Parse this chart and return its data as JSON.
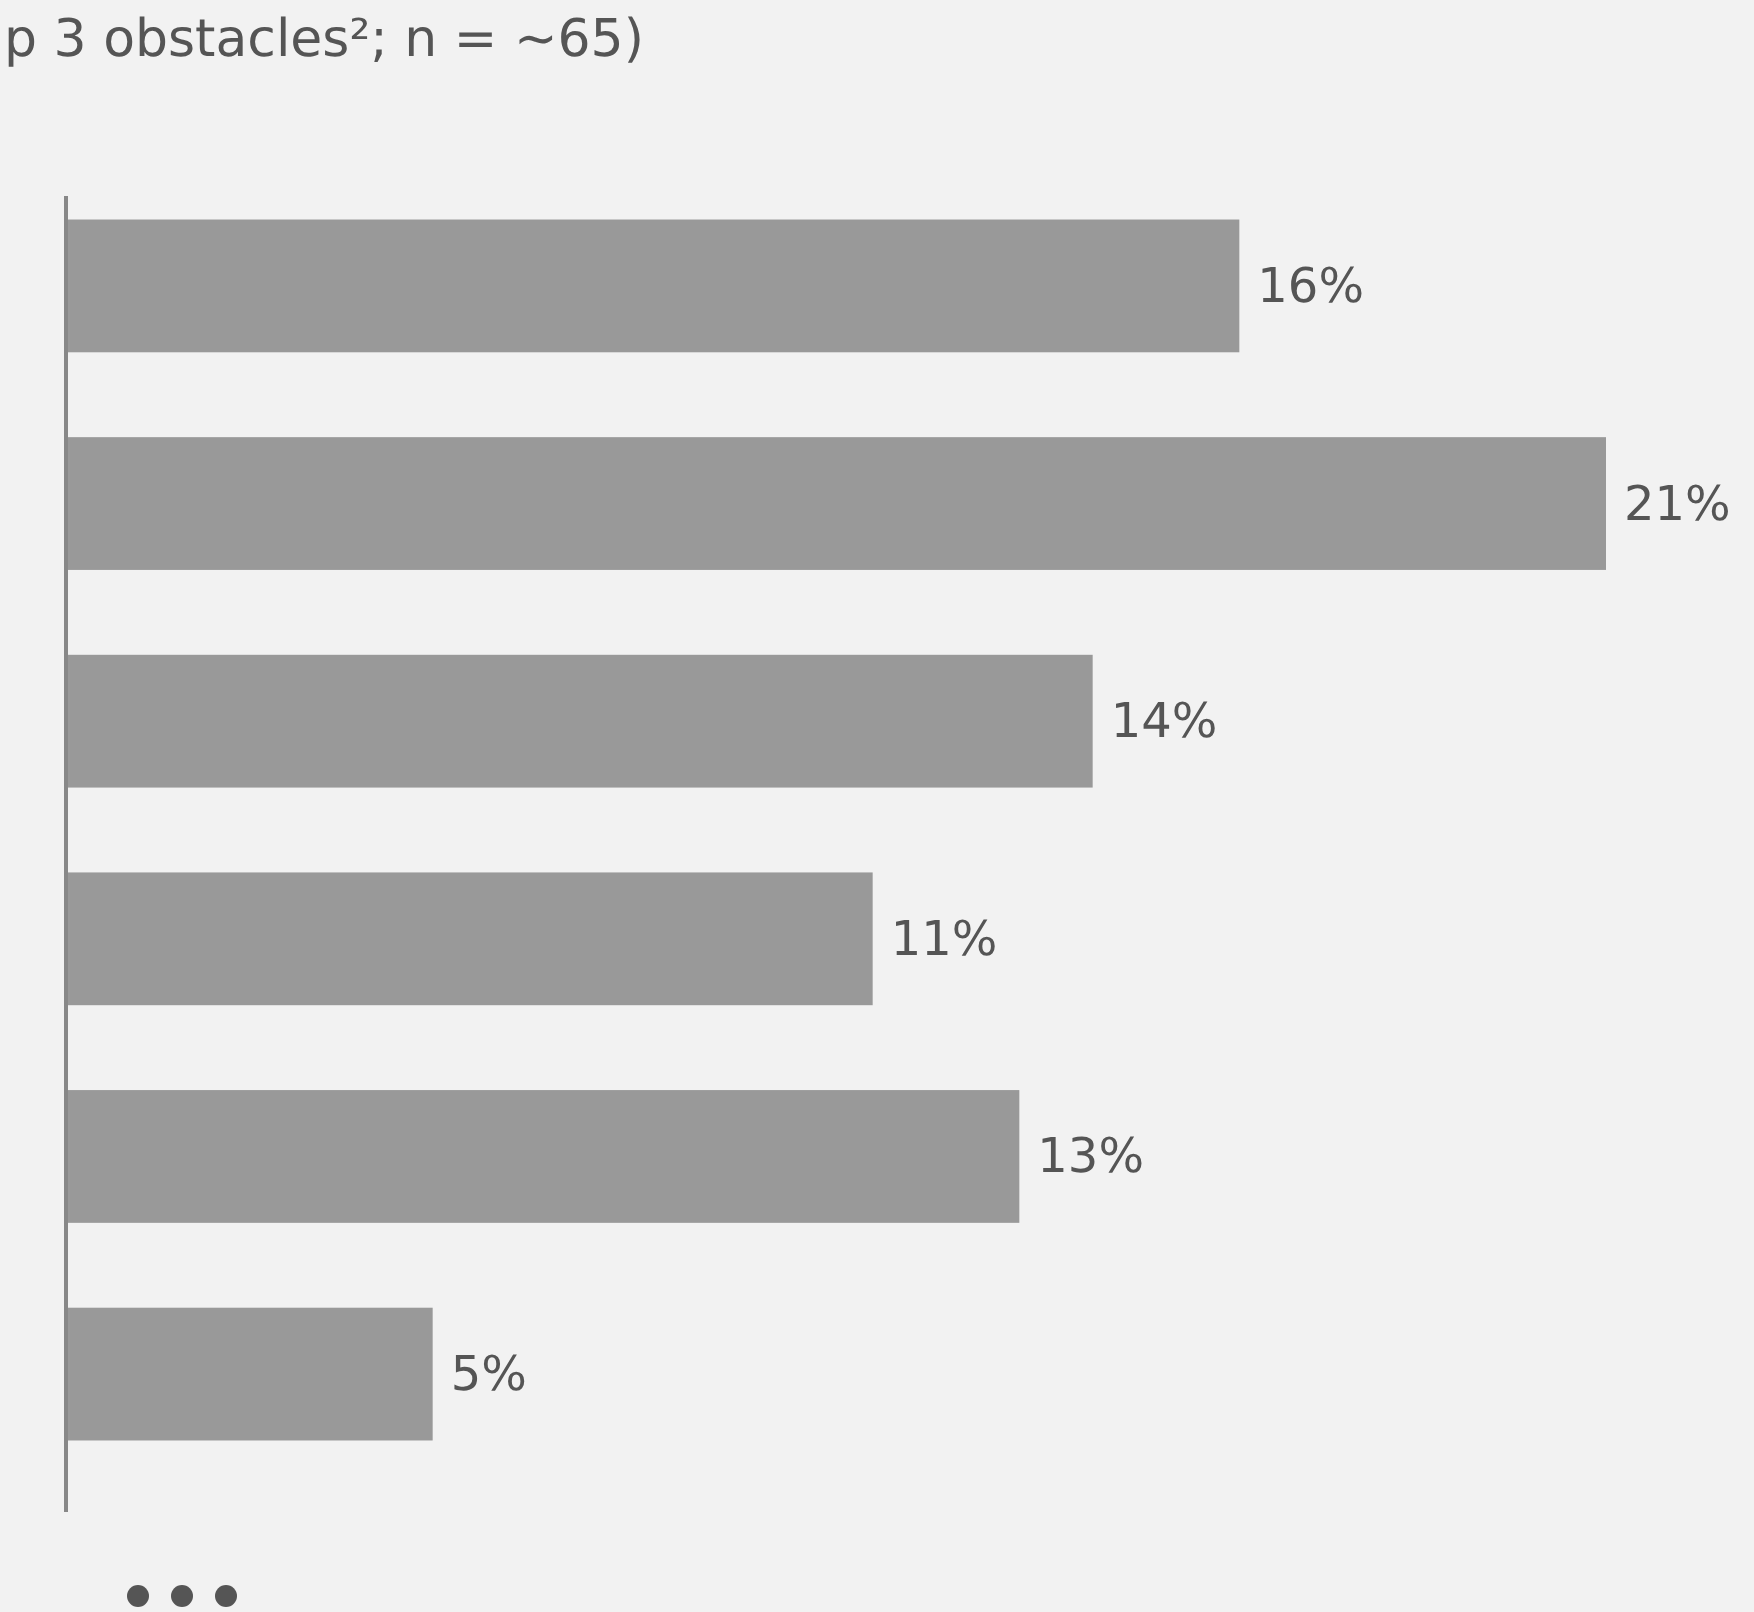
{
  "chart_data": {
    "type": "bar",
    "orientation": "horizontal",
    "title": "p 3 obstacles²; n = ~65)",
    "categories": [
      null,
      null,
      null,
      null,
      null,
      null
    ],
    "values": [
      16,
      21,
      14,
      11,
      13,
      5
    ],
    "value_labels": [
      "16%",
      "21%",
      "14%",
      "11%",
      "13%",
      "5%"
    ],
    "color": "#999999"
  }
}
